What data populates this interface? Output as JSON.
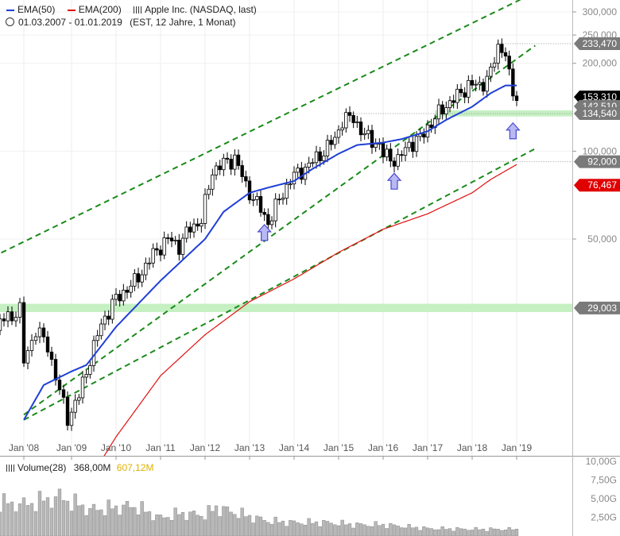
{
  "legend": {
    "ema50_label": "EMA(50)",
    "ema200_label": "EMA(200)",
    "instrument": "Apple Inc. (NASDAQ, last)",
    "date_range": "01.03.2007 - 01.01.2019",
    "info": "(EST, 12 Jahre, 1 Monat)"
  },
  "volume_legend": {
    "label": "Volume(28)",
    "value1": "368,00M",
    "value2": "607,12M"
  },
  "colors": {
    "ema50": "#1f3fd6",
    "ema200": "#e01010",
    "channel": "#1a8a1a",
    "zone": "#bfeebb",
    "candle": "#000000",
    "volume": "#b8b8b8",
    "arrow_fill": "#b8b8f4",
    "arrow_stroke": "#4a4ad0",
    "badge_dark": "#7a7a7a",
    "badge_black": "#000000",
    "badge_red": "#e00000",
    "volume_highlight": "#e0b000"
  },
  "chart_data": {
    "type": "candlestick",
    "scale": "log",
    "x_ticks": [
      "Jan '08",
      "Jan '09",
      "Jan '10",
      "Jan '11",
      "Jan '12",
      "Jan '13",
      "Jan '14",
      "Jan '15",
      "Jan '16",
      "Jan '17",
      "Jan '18",
      "Jan '19"
    ],
    "y_ticks": [
      {
        "value": 300000,
        "label": "300,000"
      },
      {
        "value": 250000,
        "label": "250,000"
      },
      {
        "value": 200000,
        "label": "200,000"
      },
      {
        "value": 100000,
        "label": "100,000"
      },
      {
        "value": 50000,
        "label": "50,000"
      }
    ],
    "price_badges": [
      {
        "label": "233,470",
        "value": 233470,
        "style": "dark"
      },
      {
        "label": "153,310",
        "value": 153310,
        "style": "black"
      },
      {
        "label": "142,510",
        "value": 142510,
        "style": "dark"
      },
      {
        "label": "134,540",
        "value": 134540,
        "style": "dark"
      },
      {
        "label": "92,000",
        "value": 92000,
        "style": "dark"
      },
      {
        "label": "76,467",
        "value": 76467,
        "style": "red"
      },
      {
        "label": "29,003",
        "value": 29003,
        "style": "dark"
      }
    ],
    "support_zones": [
      {
        "low": 28100,
        "high": 30000
      },
      {
        "low": 131500,
        "high": 138000
      }
    ],
    "monthly_close_anchors": [
      [
        "2007-03",
        19500
      ],
      [
        "2007-07",
        26000
      ],
      [
        "2007-12",
        28500
      ],
      [
        "2008-01",
        19000
      ],
      [
        "2008-04",
        24500
      ],
      [
        "2008-06",
        22500
      ],
      [
        "2008-07",
        21500
      ],
      [
        "2008-10",
        15000
      ],
      [
        "2008-12",
        12200
      ],
      [
        "2009-03",
        14500
      ],
      [
        "2009-06",
        19500
      ],
      [
        "2009-09",
        25500
      ],
      [
        "2009-12",
        30000
      ],
      [
        "2010-03",
        33000
      ],
      [
        "2010-06",
        35500
      ],
      [
        "2010-09",
        40500
      ],
      [
        "2010-12",
        46000
      ],
      [
        "2011-03",
        50000
      ],
      [
        "2011-06",
        47500
      ],
      [
        "2011-09",
        54500
      ],
      [
        "2011-12",
        58000
      ],
      [
        "2012-03",
        86000
      ],
      [
        "2012-09",
        95000
      ],
      [
        "2012-12",
        76000
      ],
      [
        "2013-04",
        63000
      ],
      [
        "2013-06",
        57000
      ],
      [
        "2013-09",
        68000
      ],
      [
        "2013-12",
        80000
      ],
      [
        "2014-06",
        92000
      ],
      [
        "2014-09",
        100000
      ],
      [
        "2014-12",
        110000
      ],
      [
        "2015-02",
        128000
      ],
      [
        "2015-05",
        130000
      ],
      [
        "2015-08",
        113000
      ],
      [
        "2015-12",
        105000
      ],
      [
        "2016-01",
        97000
      ],
      [
        "2016-05",
        93000
      ],
      [
        "2016-08",
        106000
      ],
      [
        "2016-11",
        110000
      ],
      [
        "2017-01",
        121000
      ],
      [
        "2017-06",
        144000
      ],
      [
        "2017-09",
        154000
      ],
      [
        "2017-12",
        169000
      ],
      [
        "2018-03",
        167000
      ],
      [
        "2018-06",
        185000
      ],
      [
        "2018-08",
        228000
      ],
      [
        "2018-09",
        225000
      ],
      [
        "2018-10",
        218000
      ],
      [
        "2018-11",
        178000
      ],
      [
        "2018-12",
        157000
      ],
      [
        "2019-01",
        153310
      ]
    ],
    "ema50_anchors": [
      [
        "2008-01",
        12000
      ],
      [
        "2008-06",
        15800
      ],
      [
        "2009-01",
        17600
      ],
      [
        "2009-05",
        18500
      ],
      [
        "2010-01",
        25000
      ],
      [
        "2011-01",
        36000
      ],
      [
        "2012-01",
        50000
      ],
      [
        "2012-06",
        62000
      ],
      [
        "2013-01",
        72000
      ],
      [
        "2013-06",
        75000
      ],
      [
        "2014-01",
        79000
      ],
      [
        "2014-06",
        87000
      ],
      [
        "2015-01",
        98000
      ],
      [
        "2015-06",
        105000
      ],
      [
        "2016-01",
        107000
      ],
      [
        "2016-06",
        110000
      ],
      [
        "2017-01",
        117000
      ],
      [
        "2017-06",
        128000
      ],
      [
        "2018-01",
        142000
      ],
      [
        "2018-06",
        158000
      ],
      [
        "2018-10",
        168000
      ],
      [
        "2019-01",
        168000
      ]
    ],
    "ema200_anchors": [
      [
        "2008-07",
        4500
      ],
      [
        "2010-01",
        10500
      ],
      [
        "2011-01",
        17000
      ],
      [
        "2012-01",
        23500
      ],
      [
        "2013-01",
        30500
      ],
      [
        "2014-01",
        36500
      ],
      [
        "2015-01",
        45000
      ],
      [
        "2016-01",
        54000
      ],
      [
        "2017-01",
        61000
      ],
      [
        "2018-01",
        72000
      ],
      [
        "2018-06",
        80000
      ],
      [
        "2019-01",
        90000
      ]
    ],
    "channel_lines": [
      {
        "name": "upper",
        "from": [
          "2007-03",
          42000
        ],
        "to": [
          "2019-06",
          350000
        ]
      },
      {
        "name": "middle",
        "from": [
          "2008-01",
          12500
        ],
        "to": [
          "2019-06",
          230000
        ]
      },
      {
        "name": "lower",
        "from": [
          "2008-01",
          12000
        ],
        "to": [
          "2019-06",
          102000
        ]
      }
    ],
    "reference_lines": [
      {
        "value": 233470,
        "from": "2018-08"
      },
      {
        "value": 134540,
        "from": "2015-02"
      },
      {
        "value": 92000,
        "from": "2016-05"
      }
    ],
    "marker_arrows": [
      {
        "date": "2013-05",
        "value": 56000
      },
      {
        "date": "2016-04",
        "value": 84000
      },
      {
        "date": "2018-12",
        "value": 125000
      }
    ],
    "volume_axis": {
      "max_label": "10,00G",
      "ticks": [
        {
          "value": 7.5,
          "label": "7,50G"
        },
        {
          "value": 5.0,
          "label": "5,00G"
        },
        {
          "value": 2.5,
          "label": "2,50G"
        }
      ]
    },
    "volume_anchors_g": [
      [
        "2007-03",
        3.0
      ],
      [
        "2007-06",
        4.5
      ],
      [
        "2008-01",
        4.2
      ],
      [
        "2008-10",
        5.2
      ],
      [
        "2009-06",
        3.5
      ],
      [
        "2010-01",
        3.8
      ],
      [
        "2010-06",
        4.0
      ],
      [
        "2011-01",
        2.4
      ],
      [
        "2011-06",
        3.0
      ],
      [
        "2012-01",
        2.8
      ],
      [
        "2012-04",
        3.8
      ],
      [
        "2013-01",
        2.6
      ],
      [
        "2013-06",
        2.0
      ],
      [
        "2014-01",
        1.8
      ],
      [
        "2014-09",
        1.8
      ],
      [
        "2015-06",
        1.5
      ],
      [
        "2016-01",
        1.5
      ],
      [
        "2017-01",
        1.0
      ],
      [
        "2018-01",
        0.9
      ],
      [
        "2019-01",
        0.9
      ]
    ]
  }
}
